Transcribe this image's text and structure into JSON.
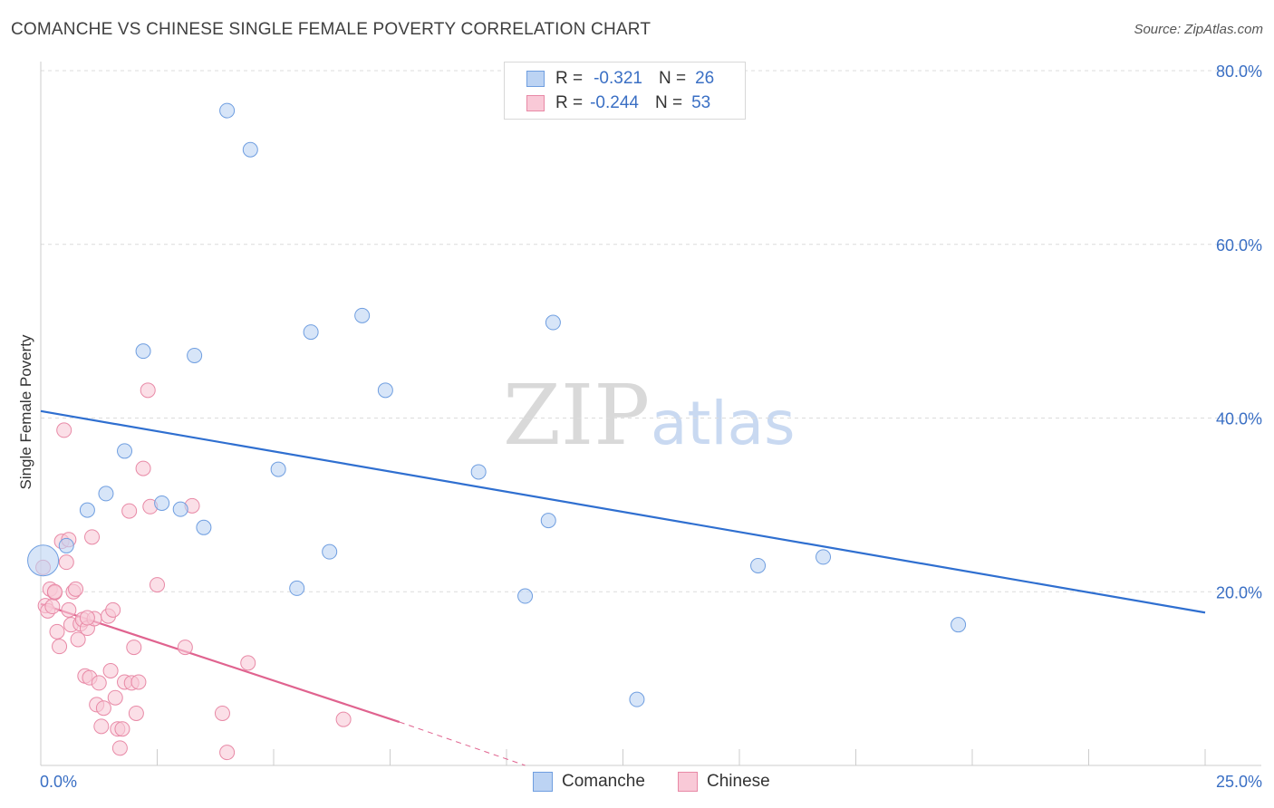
{
  "header": {
    "title": "COMANCHE VS CHINESE SINGLE FEMALE POVERTY CORRELATION CHART",
    "source": "Source: ZipAtlas.com"
  },
  "watermark": {
    "zip": "ZIP",
    "atlas": "atlas"
  },
  "legend": {
    "rows": [
      {
        "r_label": "R =",
        "r_value": "-0.321",
        "n_label": "N =",
        "n_value": "26",
        "color": "#a9c6ef",
        "border": "#6f9ee0"
      },
      {
        "r_label": "R =",
        "r_value": "-0.244",
        "n_label": "N =",
        "n_value": "53",
        "color": "#f7bfd0",
        "border": "#e889a6"
      }
    ]
  },
  "bottom_legend": {
    "comanche": "Comanche",
    "chinese": "Chinese"
  },
  "colors": {
    "comanche_fill": "#bcd3f3",
    "comanche_stroke": "#6f9ee0",
    "comanche_line": "#2f6fd0",
    "chinese_fill": "#f9c9d7",
    "chinese_stroke": "#e889a6",
    "chinese_line": "#e0638f",
    "tick_label": "#3a6fc4"
  },
  "chart_data": {
    "type": "scatter",
    "title": "COMANCHE VS CHINESE SINGLE FEMALE POVERTY CORRELATION CHART",
    "ylabel": "Single Female Poverty",
    "xlabel": "",
    "xlim": [
      0,
      25
    ],
    "ylim": [
      0,
      80
    ],
    "x_tick_labels": [
      "0.0%",
      "25.0%"
    ],
    "y_tick_labels": [
      "20.0%",
      "40.0%",
      "60.0%",
      "80.0%"
    ],
    "y_ticks": [
      20,
      40,
      60,
      80
    ],
    "grid": true,
    "legend_position": "top-center",
    "series": [
      {
        "name": "Comanche",
        "r": -0.321,
        "n": 26,
        "trend": {
          "x": [
            0,
            25
          ],
          "y": [
            40.8,
            17.6
          ]
        },
        "points": [
          [
            0.05,
            23.6
          ],
          [
            0.55,
            25.3
          ],
          [
            1.0,
            29.4
          ],
          [
            1.4,
            31.3
          ],
          [
            1.8,
            36.2
          ],
          [
            2.2,
            47.7
          ],
          [
            2.6,
            30.2
          ],
          [
            3.0,
            29.5
          ],
          [
            3.3,
            47.2
          ],
          [
            3.5,
            27.4
          ],
          [
            4.0,
            75.4
          ],
          [
            4.5,
            70.9
          ],
          [
            5.1,
            34.1
          ],
          [
            5.5,
            20.4
          ],
          [
            5.8,
            49.9
          ],
          [
            6.2,
            24.6
          ],
          [
            6.9,
            51.8
          ],
          [
            7.4,
            43.2
          ],
          [
            9.4,
            33.8
          ],
          [
            10.4,
            19.5
          ],
          [
            10.9,
            28.2
          ],
          [
            11.0,
            51.0
          ],
          [
            12.8,
            7.6
          ],
          [
            15.4,
            23.0
          ],
          [
            16.8,
            24.0
          ],
          [
            19.7,
            16.2
          ]
        ]
      },
      {
        "name": "Chinese",
        "r": -0.244,
        "n": 53,
        "trend": {
          "x": [
            0,
            7.7
          ],
          "y": [
            18.6,
            5.0
          ],
          "dashed_to": [
            10.4,
            0
          ]
        },
        "points": [
          [
            0.05,
            22.8
          ],
          [
            0.1,
            18.4
          ],
          [
            0.15,
            17.8
          ],
          [
            0.2,
            20.3
          ],
          [
            0.25,
            18.3
          ],
          [
            0.3,
            19.9
          ],
          [
            0.35,
            15.4
          ],
          [
            0.4,
            13.7
          ],
          [
            0.45,
            25.8
          ],
          [
            0.5,
            38.6
          ],
          [
            0.55,
            23.4
          ],
          [
            0.6,
            26.0
          ],
          [
            0.65,
            16.2
          ],
          [
            0.7,
            20.0
          ],
          [
            0.75,
            20.3
          ],
          [
            0.8,
            14.5
          ],
          [
            0.85,
            16.3
          ],
          [
            0.9,
            16.8
          ],
          [
            0.95,
            10.3
          ],
          [
            1.0,
            15.8
          ],
          [
            1.05,
            10.1
          ],
          [
            1.1,
            26.3
          ],
          [
            1.15,
            16.9
          ],
          [
            1.2,
            7.0
          ],
          [
            1.25,
            9.5
          ],
          [
            1.3,
            4.5
          ],
          [
            1.35,
            6.6
          ],
          [
            1.45,
            17.2
          ],
          [
            1.5,
            10.9
          ],
          [
            1.55,
            17.9
          ],
          [
            1.6,
            7.8
          ],
          [
            1.65,
            4.2
          ],
          [
            1.7,
            2.0
          ],
          [
            1.75,
            4.2
          ],
          [
            1.8,
            9.6
          ],
          [
            1.9,
            29.3
          ],
          [
            1.95,
            9.5
          ],
          [
            2.0,
            13.6
          ],
          [
            2.05,
            6.0
          ],
          [
            2.1,
            9.6
          ],
          [
            2.2,
            34.2
          ],
          [
            2.3,
            43.2
          ],
          [
            2.35,
            29.8
          ],
          [
            2.5,
            20.8
          ],
          [
            3.1,
            13.6
          ],
          [
            3.25,
            29.9
          ],
          [
            3.9,
            6.0
          ],
          [
            4.0,
            1.5
          ],
          [
            4.45,
            11.8
          ],
          [
            6.5,
            5.3
          ],
          [
            0.3,
            20.0
          ],
          [
            0.6,
            17.9
          ],
          [
            1.0,
            17.0
          ]
        ]
      }
    ]
  }
}
